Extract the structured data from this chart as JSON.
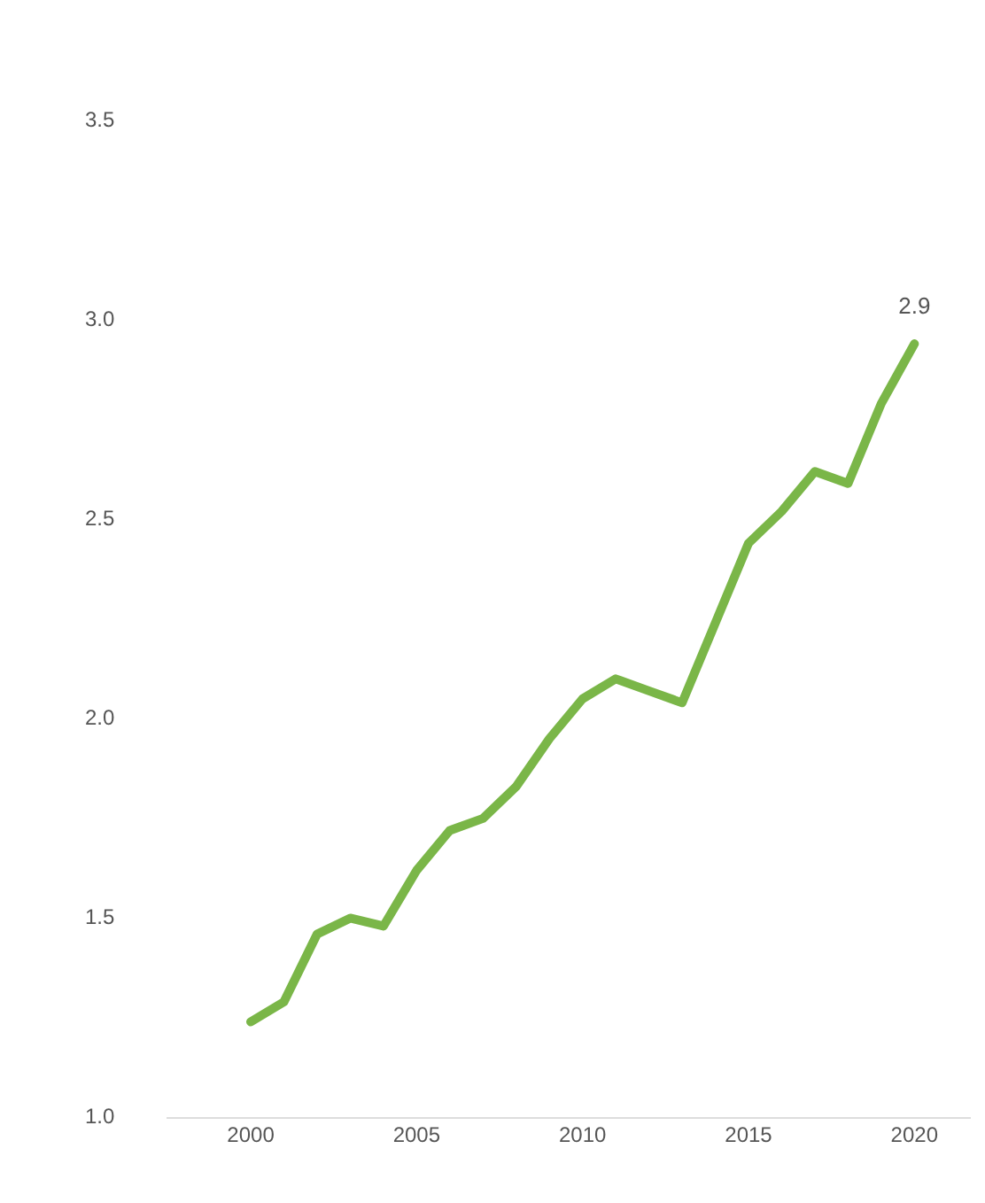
{
  "chart_data": {
    "type": "line",
    "x": [
      2000,
      2001,
      2002,
      2003,
      2004,
      2005,
      2006,
      2007,
      2008,
      2009,
      2010,
      2011,
      2012,
      2013,
      2014,
      2015,
      2016,
      2017,
      2018,
      2019,
      2020
    ],
    "series": [
      {
        "color": "#7ab648",
        "values": [
          1.24,
          1.29,
          1.46,
          1.5,
          1.48,
          1.62,
          1.72,
          1.75,
          1.83,
          1.95,
          2.05,
          2.1,
          2.07,
          2.04,
          2.24,
          2.44,
          2.52,
          2.62,
          2.59,
          2.79,
          2.94
        ],
        "value_labels": [
          null,
          null,
          null,
          null,
          null,
          null,
          null,
          null,
          null,
          null,
          null,
          null,
          null,
          null,
          null,
          null,
          null,
          null,
          null,
          null,
          "2.9"
        ]
      }
    ],
    "xlim": [
      1997.5,
      2021.7
    ],
    "xticks": [
      2000,
      2005,
      2010,
      2015,
      2020
    ],
    "ylim": [
      1,
      3.5
    ],
    "yticks": [
      {
        "value": 1,
        "label": "1.0"
      },
      {
        "value": 1.5,
        "label": "1.5"
      },
      {
        "value": 2,
        "label": "2.0"
      },
      {
        "value": 2.5,
        "label": "2.5"
      },
      {
        "value": 3,
        "label": "3.0"
      },
      {
        "value": 3.5,
        "label": "3.5"
      }
    ],
    "grid": false,
    "legend": false,
    "marker": "none",
    "line_style": "solid"
  }
}
